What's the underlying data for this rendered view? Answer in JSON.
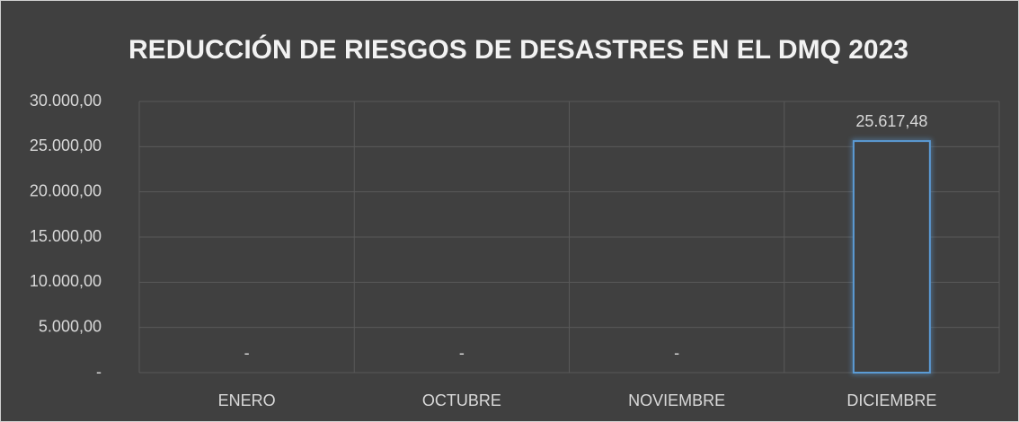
{
  "chart_data": {
    "type": "bar",
    "title": "REDUCCIÓN DE RIESGOS DE DESASTRES EN EL DMQ 2023",
    "categories": [
      "ENERO",
      "OCTUBRE",
      "NOVIEMBRE",
      "DICIEMBRE"
    ],
    "values": [
      0,
      0,
      0,
      25617.48
    ],
    "value_labels": [
      "-",
      "-",
      "-",
      "25.617,48"
    ],
    "color": "#5b9bd5",
    "ylim": [
      0,
      30000
    ],
    "yticks": [
      {
        "value": 0,
        "label": "-"
      },
      {
        "value": 5000,
        "label": "5.000,00"
      },
      {
        "value": 10000,
        "label": "10.000,00"
      },
      {
        "value": 15000,
        "label": "15.000,00"
      },
      {
        "value": 20000,
        "label": "20.000,00"
      },
      {
        "value": 25000,
        "label": "25.000,00"
      },
      {
        "value": 30000,
        "label": "30.000,00"
      }
    ],
    "grid": true
  }
}
